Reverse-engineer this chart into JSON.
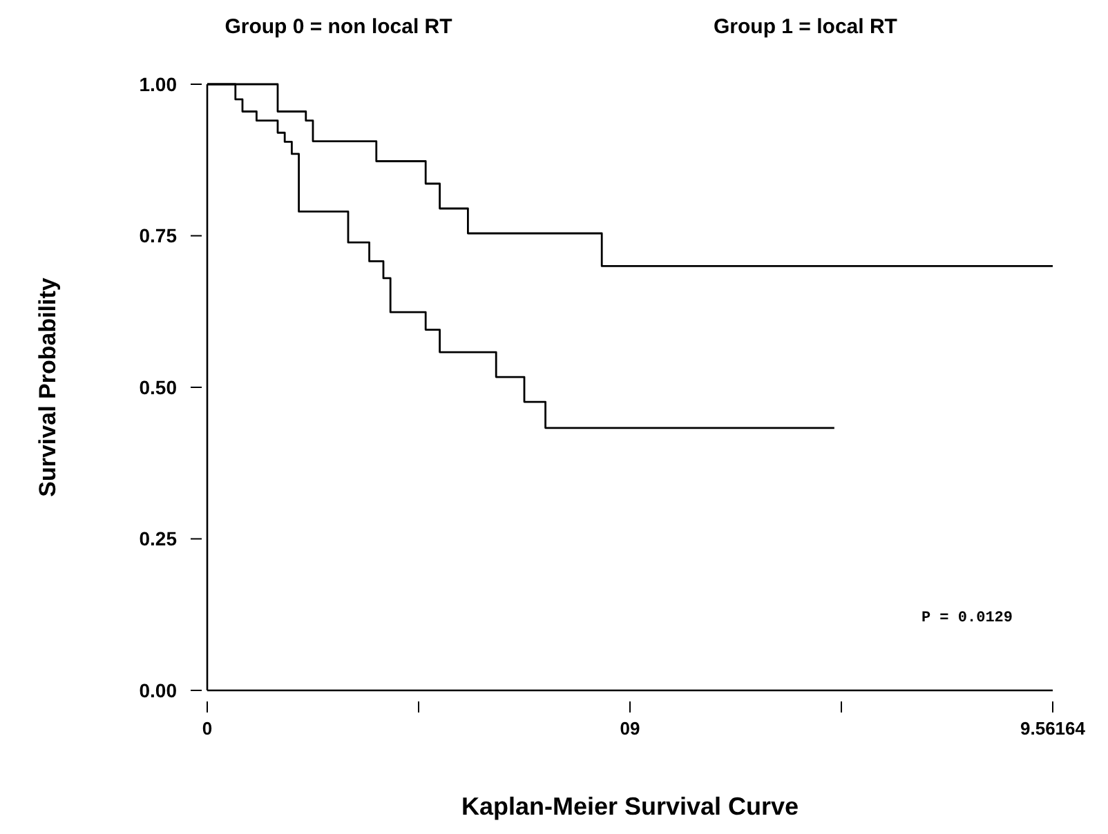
{
  "chart_data": {
    "type": "step",
    "title": "Kaplan-Meier Survival Curve",
    "ylabel": "Survival Probability",
    "categories": [
      "0",
      null,
      null,
      null,
      null,
      null,
      null,
      null,
      null,
      null,
      null,
      null,
      null,
      null,
      null,
      null,
      null,
      null,
      null,
      null,
      null,
      null,
      null,
      null,
      null,
      null,
      null,
      null,
      null,
      null,
      null,
      null,
      null,
      null,
      null,
      null,
      null,
      null,
      null,
      null,
      null,
      null,
      null,
      null,
      null,
      null,
      null,
      null,
      null,
      null,
      null,
      null,
      null,
      null,
      null,
      null,
      null,
      null,
      null,
      null,
      "09",
      null,
      null,
      null,
      null,
      null,
      null,
      null,
      null,
      null,
      null,
      null,
      null,
      null,
      null,
      null,
      null,
      null,
      null,
      null,
      null,
      null,
      null,
      null,
      null,
      null,
      null,
      null,
      null,
      null,
      null,
      null,
      null,
      null,
      null,
      null,
      null,
      null,
      null,
      null,
      null,
      null,
      null,
      null,
      null,
      null,
      null,
      null,
      null,
      null,
      null,
      null,
      null,
      null,
      null,
      null,
      null,
      null,
      null,
      null,
      "9.56164"
    ],
    "ylim": [
      0,
      1
    ],
    "yticks": [
      {
        "value": 0,
        "label": "0.00"
      },
      {
        "value": 0.25,
        "label": "0.25"
      },
      {
        "value": 0.5,
        "label": "0.50"
      },
      {
        "value": 0.75,
        "label": "0.75"
      },
      {
        "value": 1,
        "label": "1.00"
      }
    ],
    "series": [
      {
        "color": "#000000",
        "values": [
          1,
          1,
          1,
          1,
          0.975,
          0.955,
          0.955,
          0.94,
          0.94,
          0.94,
          0.92,
          0.905,
          0.885,
          0.79,
          0.79,
          0.79,
          0.79,
          0.79,
          0.79,
          0.79,
          0.739,
          0.739,
          0.739,
          0.708,
          0.708,
          0.68,
          0.624,
          0.624,
          0.624,
          0.624,
          0.624,
          0.595,
          0.595,
          0.558,
          0.558,
          0.558,
          0.558,
          0.558,
          0.558,
          0.558,
          0.558,
          0.517,
          0.517,
          0.517,
          0.517,
          0.476,
          0.476,
          0.476,
          0.433,
          0.433,
          0.433,
          0.433,
          0.433,
          0.433,
          0.433,
          0.433,
          0.433,
          0.433,
          0.433,
          0.433,
          0.433,
          0.433,
          0.433,
          0.433,
          0.433,
          0.433,
          0.433,
          0.433,
          0.433,
          0.433,
          0.433,
          0.433,
          0.433,
          0.433,
          0.433,
          0.433,
          0.433,
          0.433,
          0.433,
          0.433,
          0.433,
          0.433,
          0.433,
          0.433,
          0.433,
          0.433,
          0.433,
          0.433,
          0.433,
          0.433,
          null,
          null,
          null,
          null,
          null,
          null,
          null,
          null,
          null,
          null,
          null,
          null,
          null,
          null,
          null,
          null,
          null,
          null,
          null,
          null,
          null,
          null,
          null,
          null,
          null,
          null,
          null,
          null,
          null,
          null,
          null
        ]
      },
      {
        "color": "#000000",
        "values": [
          1,
          1,
          1,
          1,
          1,
          1,
          1,
          1,
          1,
          1,
          0.955,
          0.955,
          0.955,
          0.955,
          0.94,
          0.906,
          0.906,
          0.906,
          0.906,
          0.906,
          0.906,
          0.906,
          0.906,
          0.906,
          0.873,
          0.873,
          0.873,
          0.873,
          0.873,
          0.873,
          0.873,
          0.836,
          0.836,
          0.795,
          0.795,
          0.795,
          0.795,
          0.754,
          0.754,
          0.754,
          0.754,
          0.754,
          0.754,
          0.754,
          0.754,
          0.754,
          0.754,
          0.754,
          0.754,
          0.754,
          0.754,
          0.754,
          0.754,
          0.754,
          0.754,
          0.754,
          0.7,
          0.7,
          0.7,
          0.7,
          0.7,
          0.7,
          0.7,
          0.7,
          0.7,
          0.7,
          0.7,
          0.7,
          0.7,
          0.7,
          0.7,
          0.7,
          0.7,
          0.7,
          0.7,
          0.7,
          0.7,
          0.7,
          0.7,
          0.7,
          0.7,
          0.7,
          0.7,
          0.7,
          0.7,
          0.7,
          0.7,
          0.7,
          0.7,
          0.7,
          0.7,
          0.7,
          0.7,
          0.7,
          0.7,
          0.7,
          0.7,
          0.7,
          0.7,
          0.7,
          0.7,
          0.7,
          0.7,
          0.7,
          0.7,
          0.7,
          0.7,
          0.7,
          0.7,
          0.7,
          0.7,
          0.7,
          0.7,
          0.7,
          0.7,
          0.7,
          0.7,
          0.7,
          0.7,
          0.7,
          0.7
        ]
      }
    ],
    "annotations": [
      "Group 0 = non local RT",
      "Group 1 = local RT",
      "P = 0.0129"
    ],
    "grid": false,
    "marker": "none",
    "line_style": "solid"
  }
}
